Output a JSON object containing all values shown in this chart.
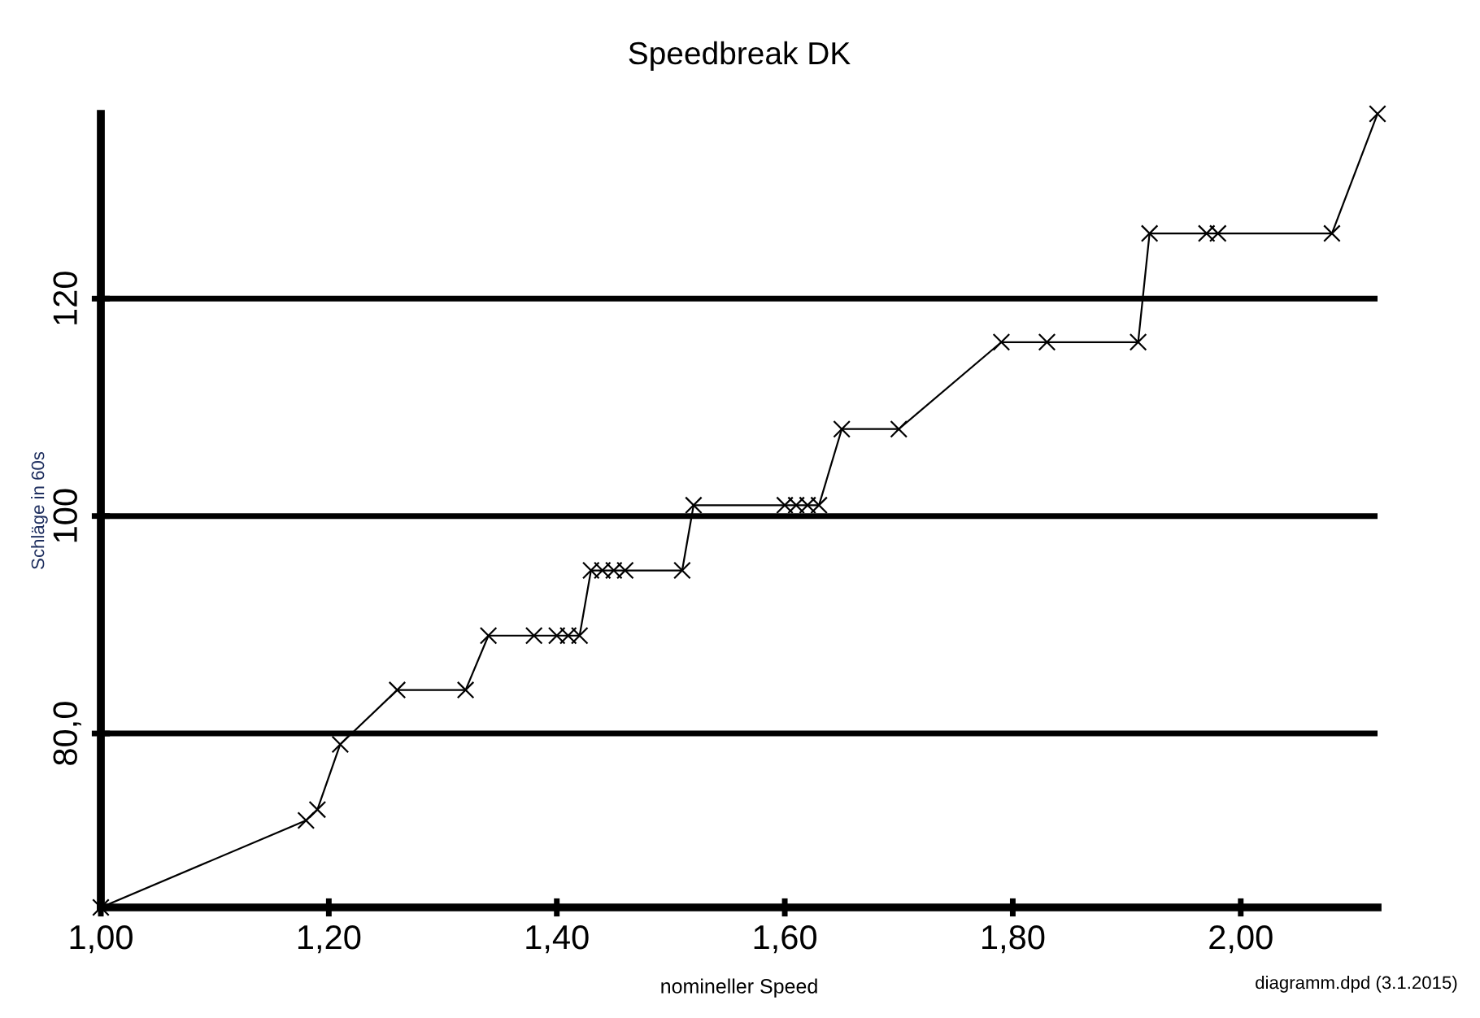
{
  "chart_data": {
    "type": "line",
    "title": "Speedbreak DK",
    "xlabel": "nomineller Speed",
    "ylabel": "Schläge in 60s",
    "x": [
      1.0,
      1.18,
      1.19,
      1.21,
      1.26,
      1.32,
      1.34,
      1.38,
      1.4,
      1.41,
      1.42,
      1.43,
      1.44,
      1.45,
      1.46,
      1.51,
      1.52,
      1.6,
      1.61,
      1.62,
      1.63,
      1.65,
      1.7,
      1.79,
      1.83,
      1.91,
      1.92,
      1.97,
      1.98,
      2.08,
      2.12
    ],
    "series": [
      {
        "color": "#000000",
        "values": [
          64,
          72,
          73,
          79,
          84,
          84,
          89,
          89,
          89,
          89,
          89,
          95,
          95,
          95,
          95,
          95,
          101,
          101,
          101,
          101,
          101,
          108,
          108,
          116,
          116,
          116,
          126,
          126,
          126,
          126,
          137
        ]
      }
    ],
    "xlim": [
      1.0,
      2.12
    ],
    "ylim": [
      64,
      137
    ],
    "xticks": [
      {
        "value": 1.0,
        "label": "1,00"
      },
      {
        "value": 1.2,
        "label": "1,20"
      },
      {
        "value": 1.4,
        "label": "1,40"
      },
      {
        "value": 1.6,
        "label": "1,60"
      },
      {
        "value": 1.8,
        "label": "1,80"
      },
      {
        "value": 2.0,
        "label": "2,00"
      }
    ],
    "yticks": [
      {
        "value": 80,
        "label": "80,0"
      },
      100,
      120
    ],
    "grid": "y",
    "marker": "cross",
    "line_style": "solid",
    "annotations": [
      "diagramm.dpd (3.1.2015)"
    ]
  }
}
